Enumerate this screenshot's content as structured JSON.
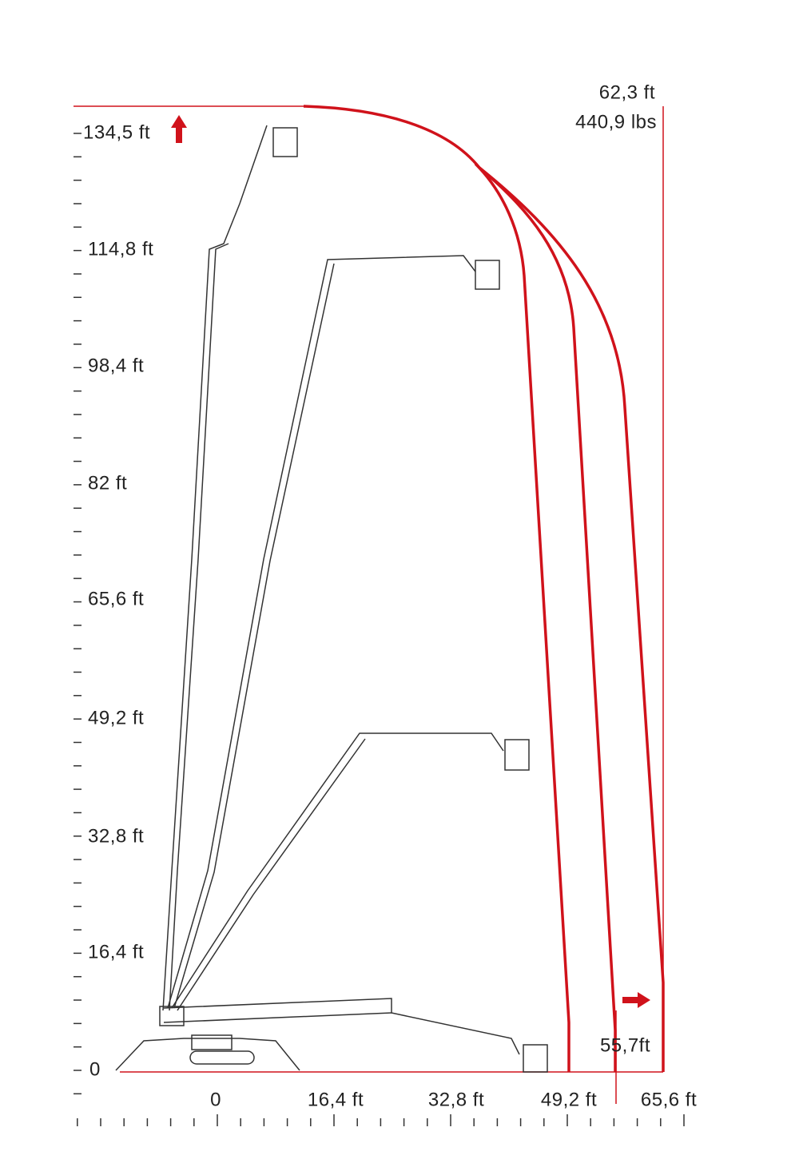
{
  "y_axis": {
    "labels": [
      "134,5 ft",
      "114,8 ft",
      "98,4 ft",
      "82 ft",
      "65,6 ft",
      "49,2 ft",
      "32,8 ft",
      "16,4 ft",
      "0"
    ]
  },
  "x_axis": {
    "labels": [
      "0",
      "16,4 ft",
      "32,8 ft",
      "49,2 ft",
      "65,6 ft"
    ]
  },
  "annotations": {
    "max_height_reach": "62,3 ft",
    "max_load": "440,9 lbs",
    "outreach": "55,7ft"
  }
}
